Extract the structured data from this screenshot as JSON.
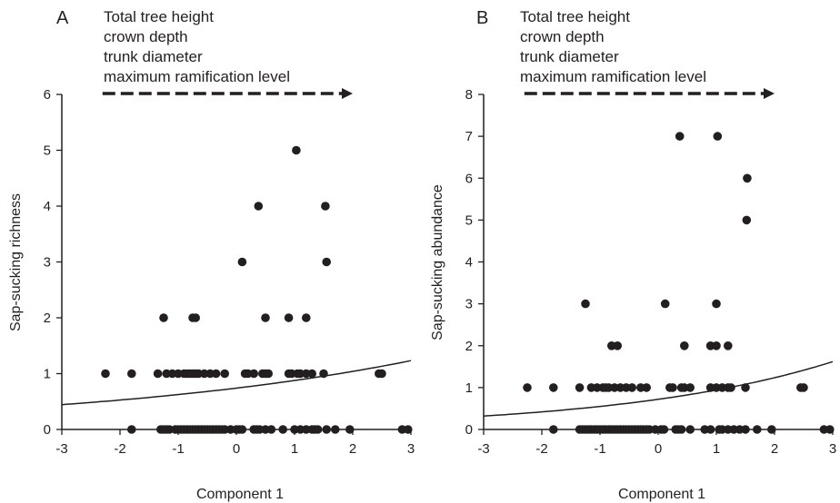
{
  "chart_data": [
    {
      "type": "scatter",
      "panel_label": "A",
      "annotation_lines": [
        "Total tree height",
        "crown depth",
        "trunk diameter",
        "maximum ramification level"
      ],
      "xlabel": "Component 1",
      "ylabel": "Sap-sucking richness",
      "xlim": [
        -3,
        3
      ],
      "ylim": [
        0,
        6
      ],
      "xticks": [
        -3,
        -2,
        -1,
        0,
        1,
        2,
        3
      ],
      "yticks": [
        0,
        1,
        2,
        3,
        4,
        5,
        6
      ],
      "arrow_range": [
        -2.3,
        2.0
      ],
      "fit_curve": {
        "form": "exponential",
        "a": 0.74,
        "b": 0.17
      },
      "points": [
        [
          -2.25,
          1
        ],
        [
          -1.8,
          1
        ],
        [
          -1.35,
          1
        ],
        [
          -1.2,
          1
        ],
        [
          -1.1,
          1
        ],
        [
          -1.0,
          1
        ],
        [
          -0.9,
          1
        ],
        [
          -0.85,
          1
        ],
        [
          -0.8,
          1
        ],
        [
          -0.75,
          1
        ],
        [
          -0.7,
          1
        ],
        [
          -0.65,
          1
        ],
        [
          -0.55,
          1
        ],
        [
          -0.45,
          1
        ],
        [
          -0.35,
          1
        ],
        [
          -0.2,
          1
        ],
        [
          0.15,
          1
        ],
        [
          0.2,
          1
        ],
        [
          0.3,
          1
        ],
        [
          0.45,
          1
        ],
        [
          0.5,
          1
        ],
        [
          0.55,
          1
        ],
        [
          0.9,
          1
        ],
        [
          0.95,
          1
        ],
        [
          1.05,
          1
        ],
        [
          1.1,
          1
        ],
        [
          1.2,
          1
        ],
        [
          1.3,
          1
        ],
        [
          1.5,
          1
        ],
        [
          2.45,
          1
        ],
        [
          2.5,
          1
        ],
        [
          -1.8,
          0
        ],
        [
          -1.3,
          0
        ],
        [
          -1.25,
          0
        ],
        [
          -1.2,
          0
        ],
        [
          -1.15,
          0
        ],
        [
          -1.05,
          0
        ],
        [
          -1.0,
          0
        ],
        [
          -0.95,
          0
        ],
        [
          -0.9,
          0
        ],
        [
          -0.85,
          0
        ],
        [
          -0.8,
          0
        ],
        [
          -0.75,
          0
        ],
        [
          -0.7,
          0
        ],
        [
          -0.65,
          0
        ],
        [
          -0.6,
          0
        ],
        [
          -0.55,
          0
        ],
        [
          -0.5,
          0
        ],
        [
          -0.45,
          0
        ],
        [
          -0.4,
          0
        ],
        [
          -0.35,
          0
        ],
        [
          -0.3,
          0
        ],
        [
          -0.25,
          0
        ],
        [
          -0.2,
          0
        ],
        [
          -0.1,
          0
        ],
        [
          0.0,
          0
        ],
        [
          0.05,
          0
        ],
        [
          0.1,
          0
        ],
        [
          0.3,
          0
        ],
        [
          0.35,
          0
        ],
        [
          0.4,
          0
        ],
        [
          0.5,
          0
        ],
        [
          0.6,
          0
        ],
        [
          0.8,
          0
        ],
        [
          1.0,
          0
        ],
        [
          1.1,
          0
        ],
        [
          1.2,
          0
        ],
        [
          1.3,
          0
        ],
        [
          1.35,
          0
        ],
        [
          1.4,
          0
        ],
        [
          1.55,
          0
        ],
        [
          1.7,
          0
        ],
        [
          1.95,
          0
        ],
        [
          2.85,
          0
        ],
        [
          2.95,
          0
        ],
        [
          -1.25,
          2
        ],
        [
          -0.75,
          2
        ],
        [
          -0.7,
          2
        ],
        [
          0.5,
          2
        ],
        [
          0.9,
          2
        ],
        [
          1.2,
          2
        ],
        [
          0.1,
          3
        ],
        [
          1.55,
          3
        ],
        [
          0.38,
          4
        ],
        [
          1.53,
          4
        ],
        [
          1.03,
          5
        ]
      ]
    },
    {
      "type": "scatter",
      "panel_label": "B",
      "annotation_lines": [
        "Total tree height",
        "crown depth",
        "trunk diameter",
        "maximum ramification level"
      ],
      "xlabel": "Component 1",
      "ylabel": "Sap-sucking abundance",
      "xlim": [
        -3,
        3
      ],
      "ylim": [
        0,
        8
      ],
      "xticks": [
        -3,
        -2,
        -1,
        0,
        1,
        2,
        3
      ],
      "yticks": [
        0,
        1,
        2,
        3,
        4,
        5,
        6,
        7,
        8
      ],
      "arrow_range": [
        -2.3,
        2.0
      ],
      "fit_curve": {
        "form": "exponential",
        "a": 0.72,
        "b": 0.27
      },
      "points": [
        [
          -2.25,
          1
        ],
        [
          -1.8,
          1
        ],
        [
          -1.35,
          1
        ],
        [
          -1.15,
          1
        ],
        [
          -1.05,
          1
        ],
        [
          -0.95,
          1
        ],
        [
          -0.9,
          1
        ],
        [
          -0.85,
          1
        ],
        [
          -0.75,
          1
        ],
        [
          -0.65,
          1
        ],
        [
          -0.55,
          1
        ],
        [
          -0.45,
          1
        ],
        [
          -0.3,
          1
        ],
        [
          -0.2,
          1
        ],
        [
          0.2,
          1
        ],
        [
          0.25,
          1
        ],
        [
          0.4,
          1
        ],
        [
          0.45,
          1
        ],
        [
          0.55,
          1
        ],
        [
          0.9,
          1
        ],
        [
          1.0,
          1
        ],
        [
          1.1,
          1
        ],
        [
          1.2,
          1
        ],
        [
          1.25,
          1
        ],
        [
          1.5,
          1
        ],
        [
          2.45,
          1
        ],
        [
          2.5,
          1
        ],
        [
          -1.8,
          0
        ],
        [
          -1.35,
          0
        ],
        [
          -1.3,
          0
        ],
        [
          -1.25,
          0
        ],
        [
          -1.2,
          0
        ],
        [
          -1.15,
          0
        ],
        [
          -1.1,
          0
        ],
        [
          -1.05,
          0
        ],
        [
          -1.0,
          0
        ],
        [
          -0.95,
          0
        ],
        [
          -0.9,
          0
        ],
        [
          -0.85,
          0
        ],
        [
          -0.8,
          0
        ],
        [
          -0.75,
          0
        ],
        [
          -0.7,
          0
        ],
        [
          -0.65,
          0
        ],
        [
          -0.6,
          0
        ],
        [
          -0.55,
          0
        ],
        [
          -0.5,
          0
        ],
        [
          -0.45,
          0
        ],
        [
          -0.4,
          0
        ],
        [
          -0.35,
          0
        ],
        [
          -0.3,
          0
        ],
        [
          -0.25,
          0
        ],
        [
          -0.2,
          0
        ],
        [
          -0.15,
          0
        ],
        [
          -0.05,
          0
        ],
        [
          0.05,
          0
        ],
        [
          0.1,
          0
        ],
        [
          0.3,
          0
        ],
        [
          0.35,
          0
        ],
        [
          0.4,
          0
        ],
        [
          0.55,
          0
        ],
        [
          0.8,
          0
        ],
        [
          0.9,
          0
        ],
        [
          1.05,
          0
        ],
        [
          1.1,
          0
        ],
        [
          1.2,
          0
        ],
        [
          1.3,
          0
        ],
        [
          1.4,
          0
        ],
        [
          1.5,
          0
        ],
        [
          1.7,
          0
        ],
        [
          1.95,
          0
        ],
        [
          2.85,
          0
        ],
        [
          2.95,
          0
        ],
        [
          -0.8,
          2
        ],
        [
          -0.7,
          2
        ],
        [
          0.45,
          2
        ],
        [
          0.9,
          2
        ],
        [
          1.0,
          2
        ],
        [
          1.2,
          2
        ],
        [
          -1.25,
          3
        ],
        [
          0.12,
          3
        ],
        [
          1.0,
          3
        ],
        [
          1.52,
          5
        ],
        [
          1.53,
          6
        ],
        [
          0.37,
          7
        ],
        [
          1.02,
          7
        ]
      ]
    }
  ]
}
